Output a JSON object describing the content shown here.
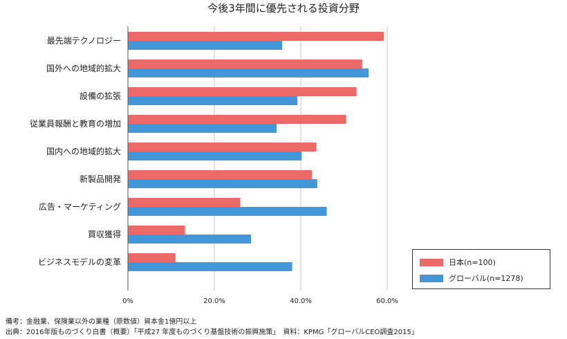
{
  "chart_data": {
    "type": "bar",
    "orientation": "horizontal",
    "title": "今後3年間に優先される投資分野",
    "categories": [
      "最先端テクノロジー",
      "国外への地域的拡大",
      "設備の拡張",
      "従業員報酬と教育の増加",
      "国内への地域的拡大",
      "新製品開発",
      "広告・マーケティング",
      "買収獲得",
      "ビジネスモデルの変革"
    ],
    "series": [
      {
        "name": "日本(n=100)",
        "color": "#ec6a66",
        "values": [
          59.2,
          54.2,
          52.9,
          50.5,
          43.6,
          42.6,
          26.0,
          13.2,
          11.0
        ]
      },
      {
        "name": "グローバル(n=1278)",
        "color": "#4397d8",
        "values": [
          35.7,
          55.7,
          39.2,
          34.4,
          40.2,
          43.8,
          46.0,
          28.5,
          38.0
        ]
      }
    ],
    "xlim": [
      0,
      60
    ],
    "xticks": [
      0,
      20,
      40,
      60
    ],
    "xtick_labels": [
      "0%",
      "20.0%",
      "40.0%",
      "60.0%"
    ],
    "legend_position": "bottom-right"
  },
  "notes": {
    "line1": "備考：金融業、保険業以外の業種（原数値）資本金1億円以上",
    "line2": "出典：2016年版ものづくり白書（概要）「平成27 年度ものづくり基盤技術の振興施策」　資料：KPMG「グローバルCEO調査2015」"
  }
}
